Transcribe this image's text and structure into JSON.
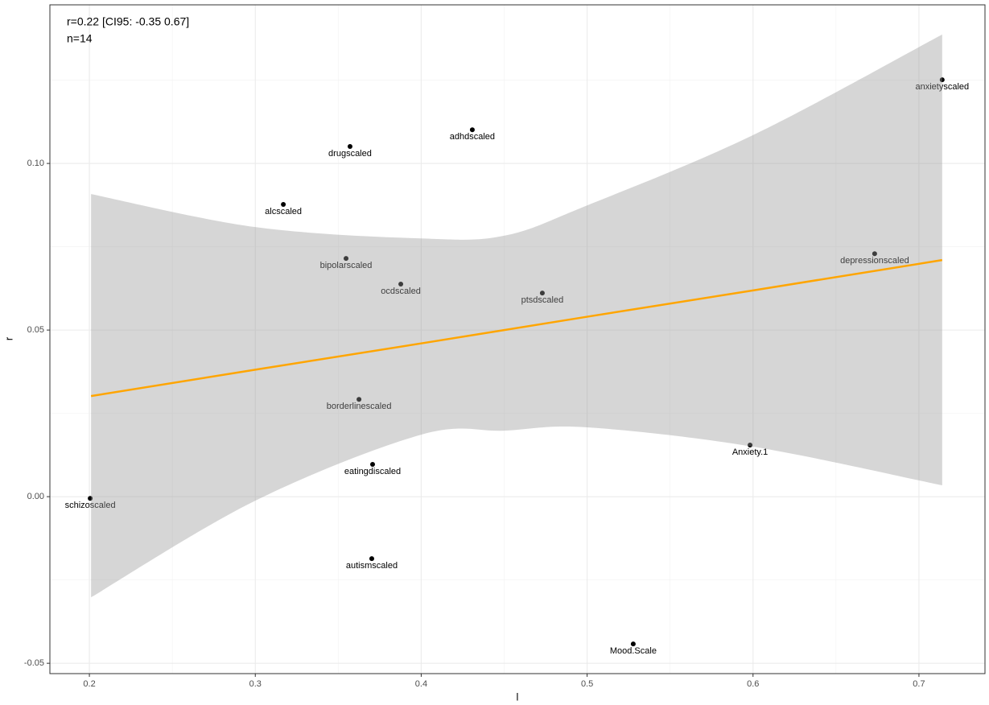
{
  "chart_data": {
    "type": "scatter",
    "annotations": [
      "r=0.22 [CI95: -0.35 0.67]",
      "n=14"
    ],
    "xlabel": "l",
    "ylabel": "r",
    "xlim": [
      0.1762,
      0.7398
    ],
    "ylim": [
      -0.0531,
      0.1476
    ],
    "xticks": [
      0.2,
      0.3,
      0.4,
      0.5,
      0.6,
      0.7
    ],
    "yticks": [
      {
        "value": 0.1,
        "label": "0.10"
      },
      {
        "value": 0.05,
        "label": "0.05"
      },
      {
        "value": 0,
        "label": "0.00"
      },
      {
        "value": -0.05,
        "label": "-0.05"
      }
    ],
    "xminor": [
      0.25,
      0.35,
      0.45,
      0.55,
      0.65
    ],
    "yminor": [
      0.125,
      0.075,
      0.025,
      -0.025
    ],
    "grid": true,
    "point_color": "#000000",
    "labels": [
      "anxietyscaled",
      "adhdscaled",
      "drugscaled",
      "alcscaled",
      "depressionscaled",
      "bipolarscaled",
      "ocdscaled",
      "ptsdscaled",
      "borderlinescaled",
      "Anxiety.1",
      "eatingdiscaled",
      "schizoscaled",
      "autismscaled",
      "Mood.Scale"
    ],
    "x": [
      0.714,
      0.4308,
      0.3571,
      0.3169,
      0.6733,
      0.3547,
      0.3877,
      0.473,
      0.3625,
      0.5982,
      0.3707,
      0.2005,
      0.3702,
      0.5278
    ],
    "values": [
      0.1251,
      0.1101,
      0.1051,
      0.0877,
      0.0729,
      0.0715,
      0.0638,
      0.0611,
      0.0292,
      0.0155,
      0.0097,
      -0.0005,
      -0.0186,
      -0.0442
    ],
    "fit": {
      "color": "#FFA500",
      "band_color": "#999999",
      "x": [
        0.201,
        0.3,
        0.4,
        0.45,
        0.5,
        0.6,
        0.714
      ],
      "y": [
        0.0302,
        0.0381,
        0.046,
        0.05,
        0.054,
        0.0619,
        0.071
      ],
      "upper": [
        0.0908,
        0.0809,
        0.0775,
        0.0783,
        0.0874,
        0.1085,
        0.1387
      ],
      "lower": [
        -0.0302,
        -0.0012,
        0.0186,
        0.0198,
        0.0208,
        0.015,
        0.0034
      ]
    }
  }
}
